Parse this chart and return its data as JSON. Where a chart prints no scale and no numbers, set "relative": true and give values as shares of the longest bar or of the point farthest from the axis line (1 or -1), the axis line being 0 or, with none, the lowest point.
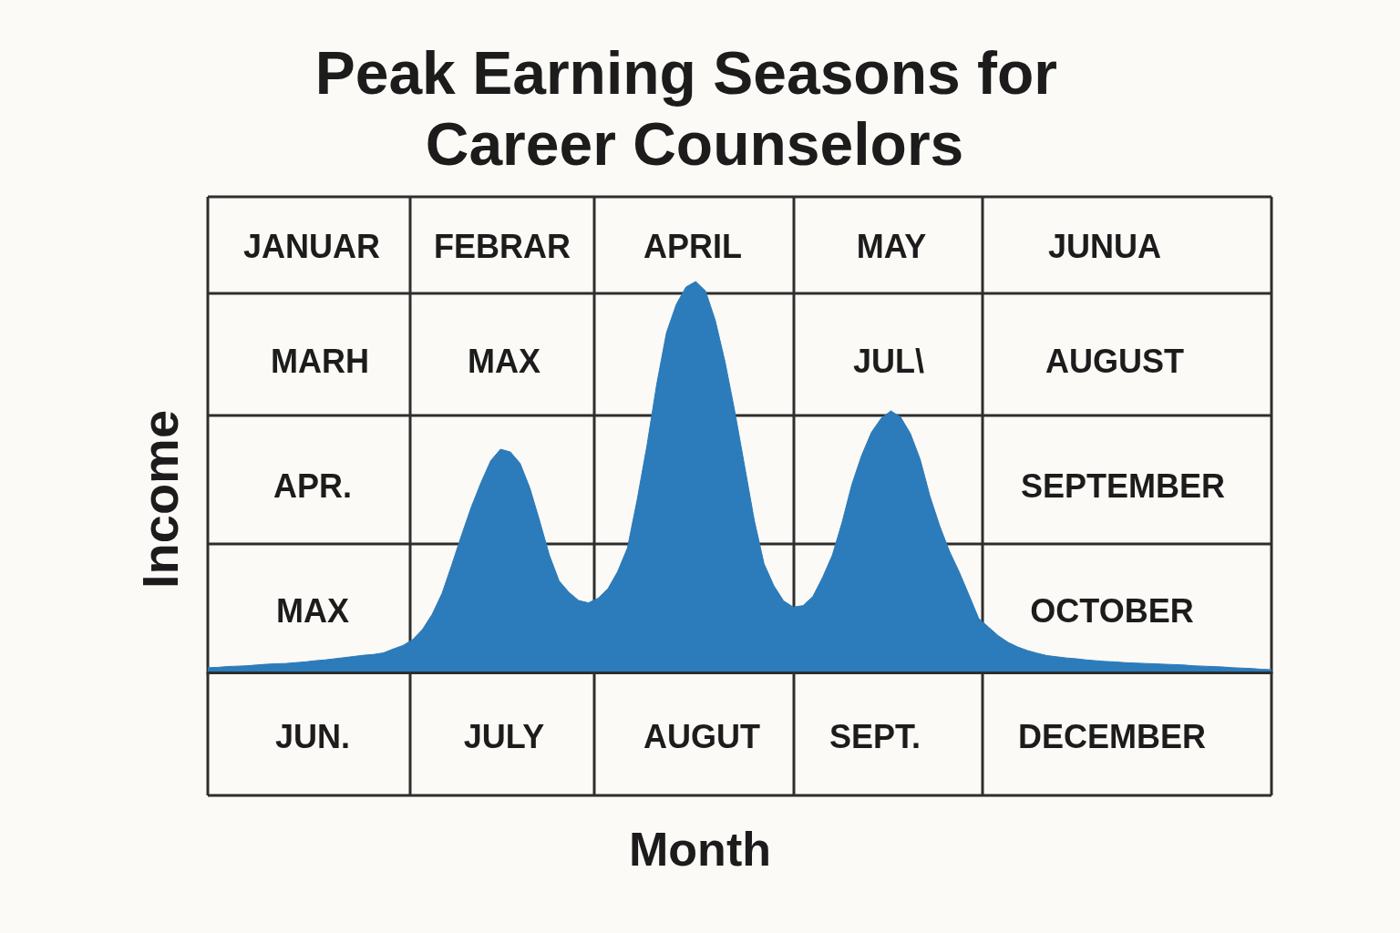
{
  "chart_data": {
    "type": "area",
    "title": "Peak Earning Seasons for Career Counselors",
    "xlabel": "Month",
    "ylabel": "Income",
    "relative": true,
    "grid": true,
    "color": "#2c7bbb",
    "annotations": [
      "JANUAR",
      "FEBRAR",
      "APRIL",
      "MAY",
      "JUNUA",
      "MARH",
      "MAX",
      "JUL\\",
      "AUGUST",
      "APR.",
      "SEPTEMBER",
      "MAX",
      "OCTOBER",
      "JUN.",
      "JULY",
      "AUGUT",
      "SEPT.",
      "DECEMBER"
    ],
    "categories": [
      null,
      null,
      null,
      null,
      null,
      null,
      null,
      null,
      null,
      null,
      null,
      null,
      null,
      null,
      null,
      null,
      null,
      null,
      null,
      null,
      null,
      null,
      null,
      null,
      null,
      null,
      null,
      null,
      null,
      null,
      null,
      null,
      null,
      null,
      null,
      null,
      null,
      null,
      null,
      null,
      null,
      null,
      null,
      null,
      null,
      null,
      null,
      null,
      null,
      null,
      null,
      null,
      null,
      null,
      null,
      null,
      null,
      null,
      null,
      null,
      null,
      null,
      null,
      null,
      null,
      null,
      null,
      null,
      null,
      null,
      null,
      null,
      null,
      null,
      null,
      null,
      null,
      null,
      null,
      null,
      null,
      null,
      null,
      null,
      null,
      null,
      null,
      null,
      null,
      null,
      null,
      null,
      null,
      null,
      null,
      null,
      null,
      null,
      null,
      null,
      null,
      null,
      null,
      null,
      null,
      null,
      null,
      null,
      null,
      null
    ],
    "values": [
      0.012,
      0.013,
      0.015,
      0.016,
      0.017,
      0.019,
      0.021,
      0.022,
      0.023,
      0.025,
      0.027,
      0.03,
      0.032,
      0.035,
      0.038,
      0.041,
      0.044,
      0.046,
      0.05,
      0.06,
      0.069,
      0.084,
      0.11,
      0.149,
      0.202,
      0.275,
      0.351,
      0.423,
      0.486,
      0.542,
      0.571,
      0.564,
      0.535,
      0.472,
      0.388,
      0.3,
      0.234,
      0.205,
      0.184,
      0.178,
      0.19,
      0.214,
      0.258,
      0.318,
      0.442,
      0.58,
      0.737,
      0.869,
      0.941,
      0.986,
      1,
      0.976,
      0.901,
      0.795,
      0.668,
      0.529,
      0.389,
      0.278,
      0.222,
      0.183,
      0.167,
      0.171,
      0.194,
      0.243,
      0.3,
      0.384,
      0.481,
      0.555,
      0.614,
      0.65,
      0.669,
      0.653,
      0.611,
      0.545,
      0.451,
      0.375,
      0.31,
      0.257,
      0.198,
      0.138,
      0.116,
      0.094,
      0.077,
      0.065,
      0.056,
      0.049,
      0.043,
      0.04,
      0.037,
      0.035,
      0.032,
      0.03,
      0.028,
      0.027,
      0.025,
      0.024,
      0.023,
      0.022,
      0.021,
      0.02,
      0.019,
      0.017,
      0.016,
      0.015,
      0.014,
      0.012,
      0.011,
      0.01,
      0.008,
      0.007
    ]
  }
}
